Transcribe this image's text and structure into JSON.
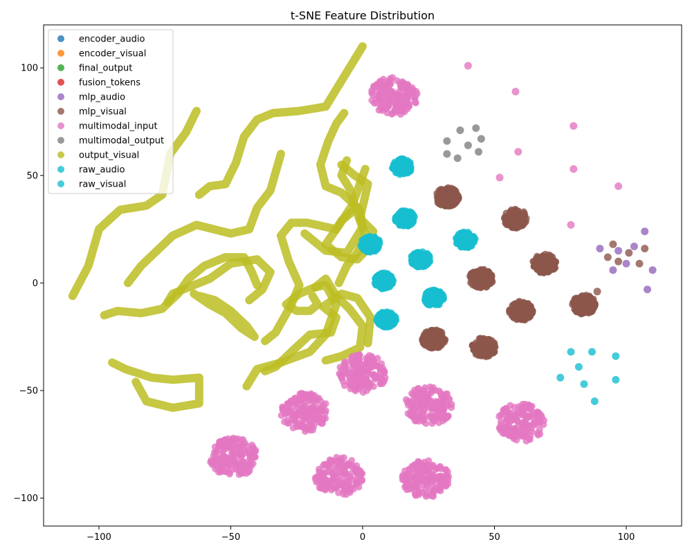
{
  "chart_data": {
    "type": "scatter",
    "title": "t-SNE Feature Distribution",
    "xlabel": "",
    "ylabel": "",
    "xlim": [
      -121,
      121
    ],
    "ylim": [
      -113,
      120
    ],
    "xticks": [
      -100,
      -50,
      0,
      50,
      100
    ],
    "yticks": [
      -100,
      -50,
      0,
      50,
      100
    ],
    "grid": false,
    "legend_position": "top-left",
    "series": [
      {
        "name": "encoder_audio",
        "color": "#1f77b4",
        "points": []
      },
      {
        "name": "encoder_visual",
        "color": "#ff7f0e",
        "points": []
      },
      {
        "name": "final_output",
        "color": "#2ca02c",
        "points": []
      },
      {
        "name": "fusion_tokens",
        "color": "#d62728",
        "points": []
      },
      {
        "name": "mlp_audio",
        "color": "#9467bd",
        "points": [
          [
            90,
            16
          ],
          [
            97,
            15
          ],
          [
            103,
            17
          ],
          [
            107,
            24
          ],
          [
            110,
            6
          ],
          [
            108,
            -3
          ],
          [
            95,
            6
          ],
          [
            100,
            9
          ]
        ]
      },
      {
        "name": "mlp_visual",
        "color": "#8c564b",
        "clusters": [
          [
            32,
            40,
            3
          ],
          [
            58,
            30,
            3
          ],
          [
            69,
            9,
            3
          ],
          [
            45,
            2,
            3
          ],
          [
            60,
            -13,
            3
          ],
          [
            84,
            -10,
            3
          ],
          [
            27,
            -26,
            3
          ],
          [
            46,
            -30,
            3
          ]
        ],
        "points": [
          [
            95,
            18
          ],
          [
            101,
            14
          ],
          [
            107,
            16
          ],
          [
            105,
            9
          ],
          [
            97,
            10
          ],
          [
            93,
            12
          ],
          [
            89,
            -4
          ]
        ]
      },
      {
        "name": "multimodal_input",
        "color": "#e377c2",
        "clusters": [
          [
            12,
            87,
            6
          ],
          [
            0,
            -42,
            6
          ],
          [
            -22,
            -60,
            6
          ],
          [
            25,
            -57,
            6
          ],
          [
            60,
            -65,
            6
          ],
          [
            -49,
            -81,
            6
          ],
          [
            -9,
            -90,
            6
          ],
          [
            24,
            -91,
            6
          ]
        ],
        "points": [
          [
            40,
            101
          ],
          [
            58,
            89
          ],
          [
            80,
            73
          ],
          [
            80,
            53
          ],
          [
            59,
            61
          ],
          [
            52,
            49
          ],
          [
            79,
            27
          ],
          [
            97,
            45
          ]
        ]
      },
      {
        "name": "multimodal_output",
        "color": "#7f7f7f",
        "points": [
          [
            32,
            66
          ],
          [
            37,
            71
          ],
          [
            43,
            72
          ],
          [
            45,
            67
          ],
          [
            40,
            64
          ],
          [
            36,
            58
          ],
          [
            32,
            60
          ],
          [
            44,
            61
          ]
        ]
      },
      {
        "name": "output_visual",
        "color": "#bcbd22",
        "curves": [
          [
            [
              -110,
              -6
            ],
            [
              -104,
              8
            ],
            [
              -100,
              25
            ],
            [
              -92,
              34
            ],
            [
              -82,
              36
            ],
            [
              -76,
              41
            ],
            [
              -73,
              60
            ],
            [
              -67,
              70
            ],
            [
              -63,
              80
            ]
          ],
          [
            [
              -62,
              41
            ],
            [
              -58,
              45
            ],
            [
              -52,
              46
            ],
            [
              -48,
              56
            ],
            [
              -45,
              68
            ],
            [
              -40,
              76
            ],
            [
              -34,
              79
            ],
            [
              -24,
              80
            ],
            [
              -14,
              82
            ],
            [
              -7,
              96
            ],
            [
              0,
              110
            ]
          ],
          [
            [
              -89,
              0
            ],
            [
              -84,
              8
            ],
            [
              -78,
              15
            ],
            [
              -72,
              22
            ],
            [
              -63,
              27
            ],
            [
              -50,
              23
            ],
            [
              -43,
              25
            ],
            [
              -40,
              35
            ],
            [
              -35,
              43
            ],
            [
              -31,
              60
            ]
          ],
          [
            [
              -43,
              -8
            ],
            [
              -38,
              -3
            ],
            [
              -35,
              5
            ],
            [
              -40,
              11
            ],
            [
              -50,
              9
            ],
            [
              -58,
              2
            ],
            [
              -66,
              -2
            ],
            [
              -72,
              -5
            ],
            [
              -74,
              -9
            ]
          ],
          [
            [
              -98,
              -15
            ],
            [
              -93,
              -13
            ],
            [
              -84,
              -14
            ],
            [
              -76,
              -12
            ],
            [
              -70,
              -5
            ],
            [
              -66,
              2
            ],
            [
              -60,
              8
            ],
            [
              -52,
              12
            ],
            [
              -45,
              12
            ],
            [
              -42,
              5
            ],
            [
              -40,
              -1
            ]
          ],
          [
            [
              -95,
              -37
            ],
            [
              -90,
              -40
            ],
            [
              -80,
              -44
            ],
            [
              -72,
              -45
            ],
            [
              -62,
              -44
            ],
            [
              -62,
              -56
            ],
            [
              -72,
              -58
            ],
            [
              -82,
              -55
            ],
            [
              -86,
              -46
            ]
          ],
          [
            [
              -62,
              -6
            ],
            [
              -56,
              -8
            ],
            [
              -50,
              -13
            ],
            [
              -44,
              -20
            ],
            [
              -41,
              -25
            ],
            [
              -46,
              -21
            ],
            [
              -52,
              -14
            ],
            [
              -58,
              -10
            ],
            [
              -64,
              -5
            ]
          ],
          [
            [
              -37,
              -27
            ],
            [
              -33,
              -23
            ],
            [
              -27,
              -10
            ],
            [
              -24,
              -1
            ],
            [
              -28,
              10
            ],
            [
              -31,
              22
            ],
            [
              -27,
              28
            ],
            [
              -21,
              28
            ],
            [
              -10,
              25
            ],
            [
              -4,
              36
            ],
            [
              1,
              53
            ]
          ],
          [
            [
              -37,
              -41
            ],
            [
              -33,
              -39
            ],
            [
              -27,
              -32
            ],
            [
              -20,
              -24
            ],
            [
              -12,
              -23
            ],
            [
              -10,
              -16
            ],
            [
              -15,
              -11
            ],
            [
              -8,
              -5
            ],
            [
              -2,
              -7
            ],
            [
              3,
              -16
            ],
            [
              2,
              -28
            ]
          ],
          [
            [
              -22,
              23
            ],
            [
              -14,
              15
            ],
            [
              -6,
              14
            ],
            [
              0,
              26
            ],
            [
              -1,
              34
            ],
            [
              -8,
              42
            ],
            [
              -14,
              45
            ],
            [
              -16,
              55
            ],
            [
              -13,
              66
            ],
            [
              -10,
              74
            ],
            [
              -7,
              79
            ]
          ],
          [
            [
              -44,
              -48
            ],
            [
              -40,
              -40
            ],
            [
              -31,
              -37
            ],
            [
              -20,
              -32
            ],
            [
              -14,
              -24
            ],
            [
              -10,
              -10
            ],
            [
              -14,
              -1
            ],
            [
              -18,
              -2
            ],
            [
              -24,
              -5
            ],
            [
              -29,
              -10
            ],
            [
              -25,
              -13
            ],
            [
              -20,
              -13
            ],
            [
              -17,
              -10
            ],
            [
              -19,
              -6
            ]
          ],
          [
            [
              -14,
              -36
            ],
            [
              -8,
              -34
            ],
            [
              -1,
              -30
            ],
            [
              0,
              -20
            ],
            [
              -5,
              -12
            ],
            [
              -10,
              -6
            ],
            [
              -14,
              2
            ],
            [
              -18,
              -2
            ]
          ],
          [
            [
              -4,
              33
            ],
            [
              -8,
              29
            ],
            [
              -10,
              25
            ],
            [
              -14,
              18
            ],
            [
              -8,
              12
            ],
            [
              -2,
              11
            ],
            [
              2,
              16
            ],
            [
              4,
              24
            ],
            [
              -1,
              30
            ],
            [
              2,
              46
            ],
            [
              -3,
              50
            ],
            [
              -8,
              55
            ]
          ],
          [
            [
              -6,
              57
            ],
            [
              -8,
              50
            ],
            [
              -5,
              44
            ],
            [
              -3,
              36
            ],
            [
              1,
              22
            ],
            [
              -2,
              14
            ],
            [
              -6,
              8
            ],
            [
              -9,
              0
            ]
          ]
        ]
      },
      {
        "name": "raw_audio",
        "color": "#17becf",
        "clusters": [
          [
            15,
            54,
            2.5
          ],
          [
            16,
            30,
            2.5
          ],
          [
            3,
            18,
            2.5
          ],
          [
            22,
            11,
            2.5
          ],
          [
            39,
            20,
            2.5
          ],
          [
            8,
            1,
            2.5
          ],
          [
            27,
            -7,
            2.5
          ],
          [
            9,
            -17,
            2.5
          ]
        ],
        "points": [
          [
            79,
            -32
          ],
          [
            75,
            -44
          ],
          [
            82,
            -39
          ],
          [
            87,
            -32
          ],
          [
            84,
            -47
          ],
          [
            88,
            -55
          ],
          [
            96,
            -34
          ],
          [
            96,
            -45
          ]
        ]
      },
      {
        "name": "raw_visual",
        "color": "#17becf",
        "points": []
      }
    ]
  }
}
